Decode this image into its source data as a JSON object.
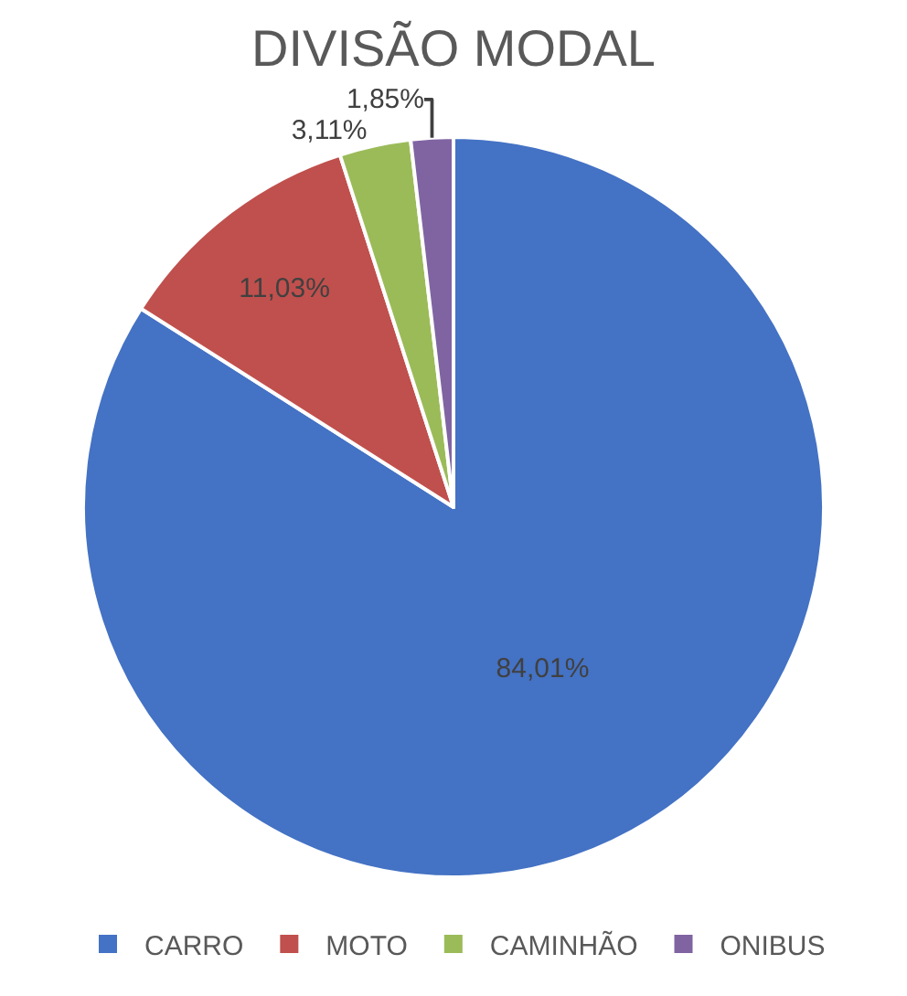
{
  "chart_data": {
    "type": "pie",
    "title": "DIVISÃO MODAL",
    "categories": [
      "CARRO",
      "MOTO",
      "CAMINHÃO",
      "ONIBUS"
    ],
    "values": [
      84.01,
      11.03,
      3.11,
      1.85
    ],
    "value_labels": [
      "84,01%",
      "11,03%",
      "3,11%",
      "1,85%"
    ],
    "colors": [
      "#4472c4",
      "#c0504d",
      "#9bbb59",
      "#8064a2"
    ],
    "legend": "bottom"
  }
}
